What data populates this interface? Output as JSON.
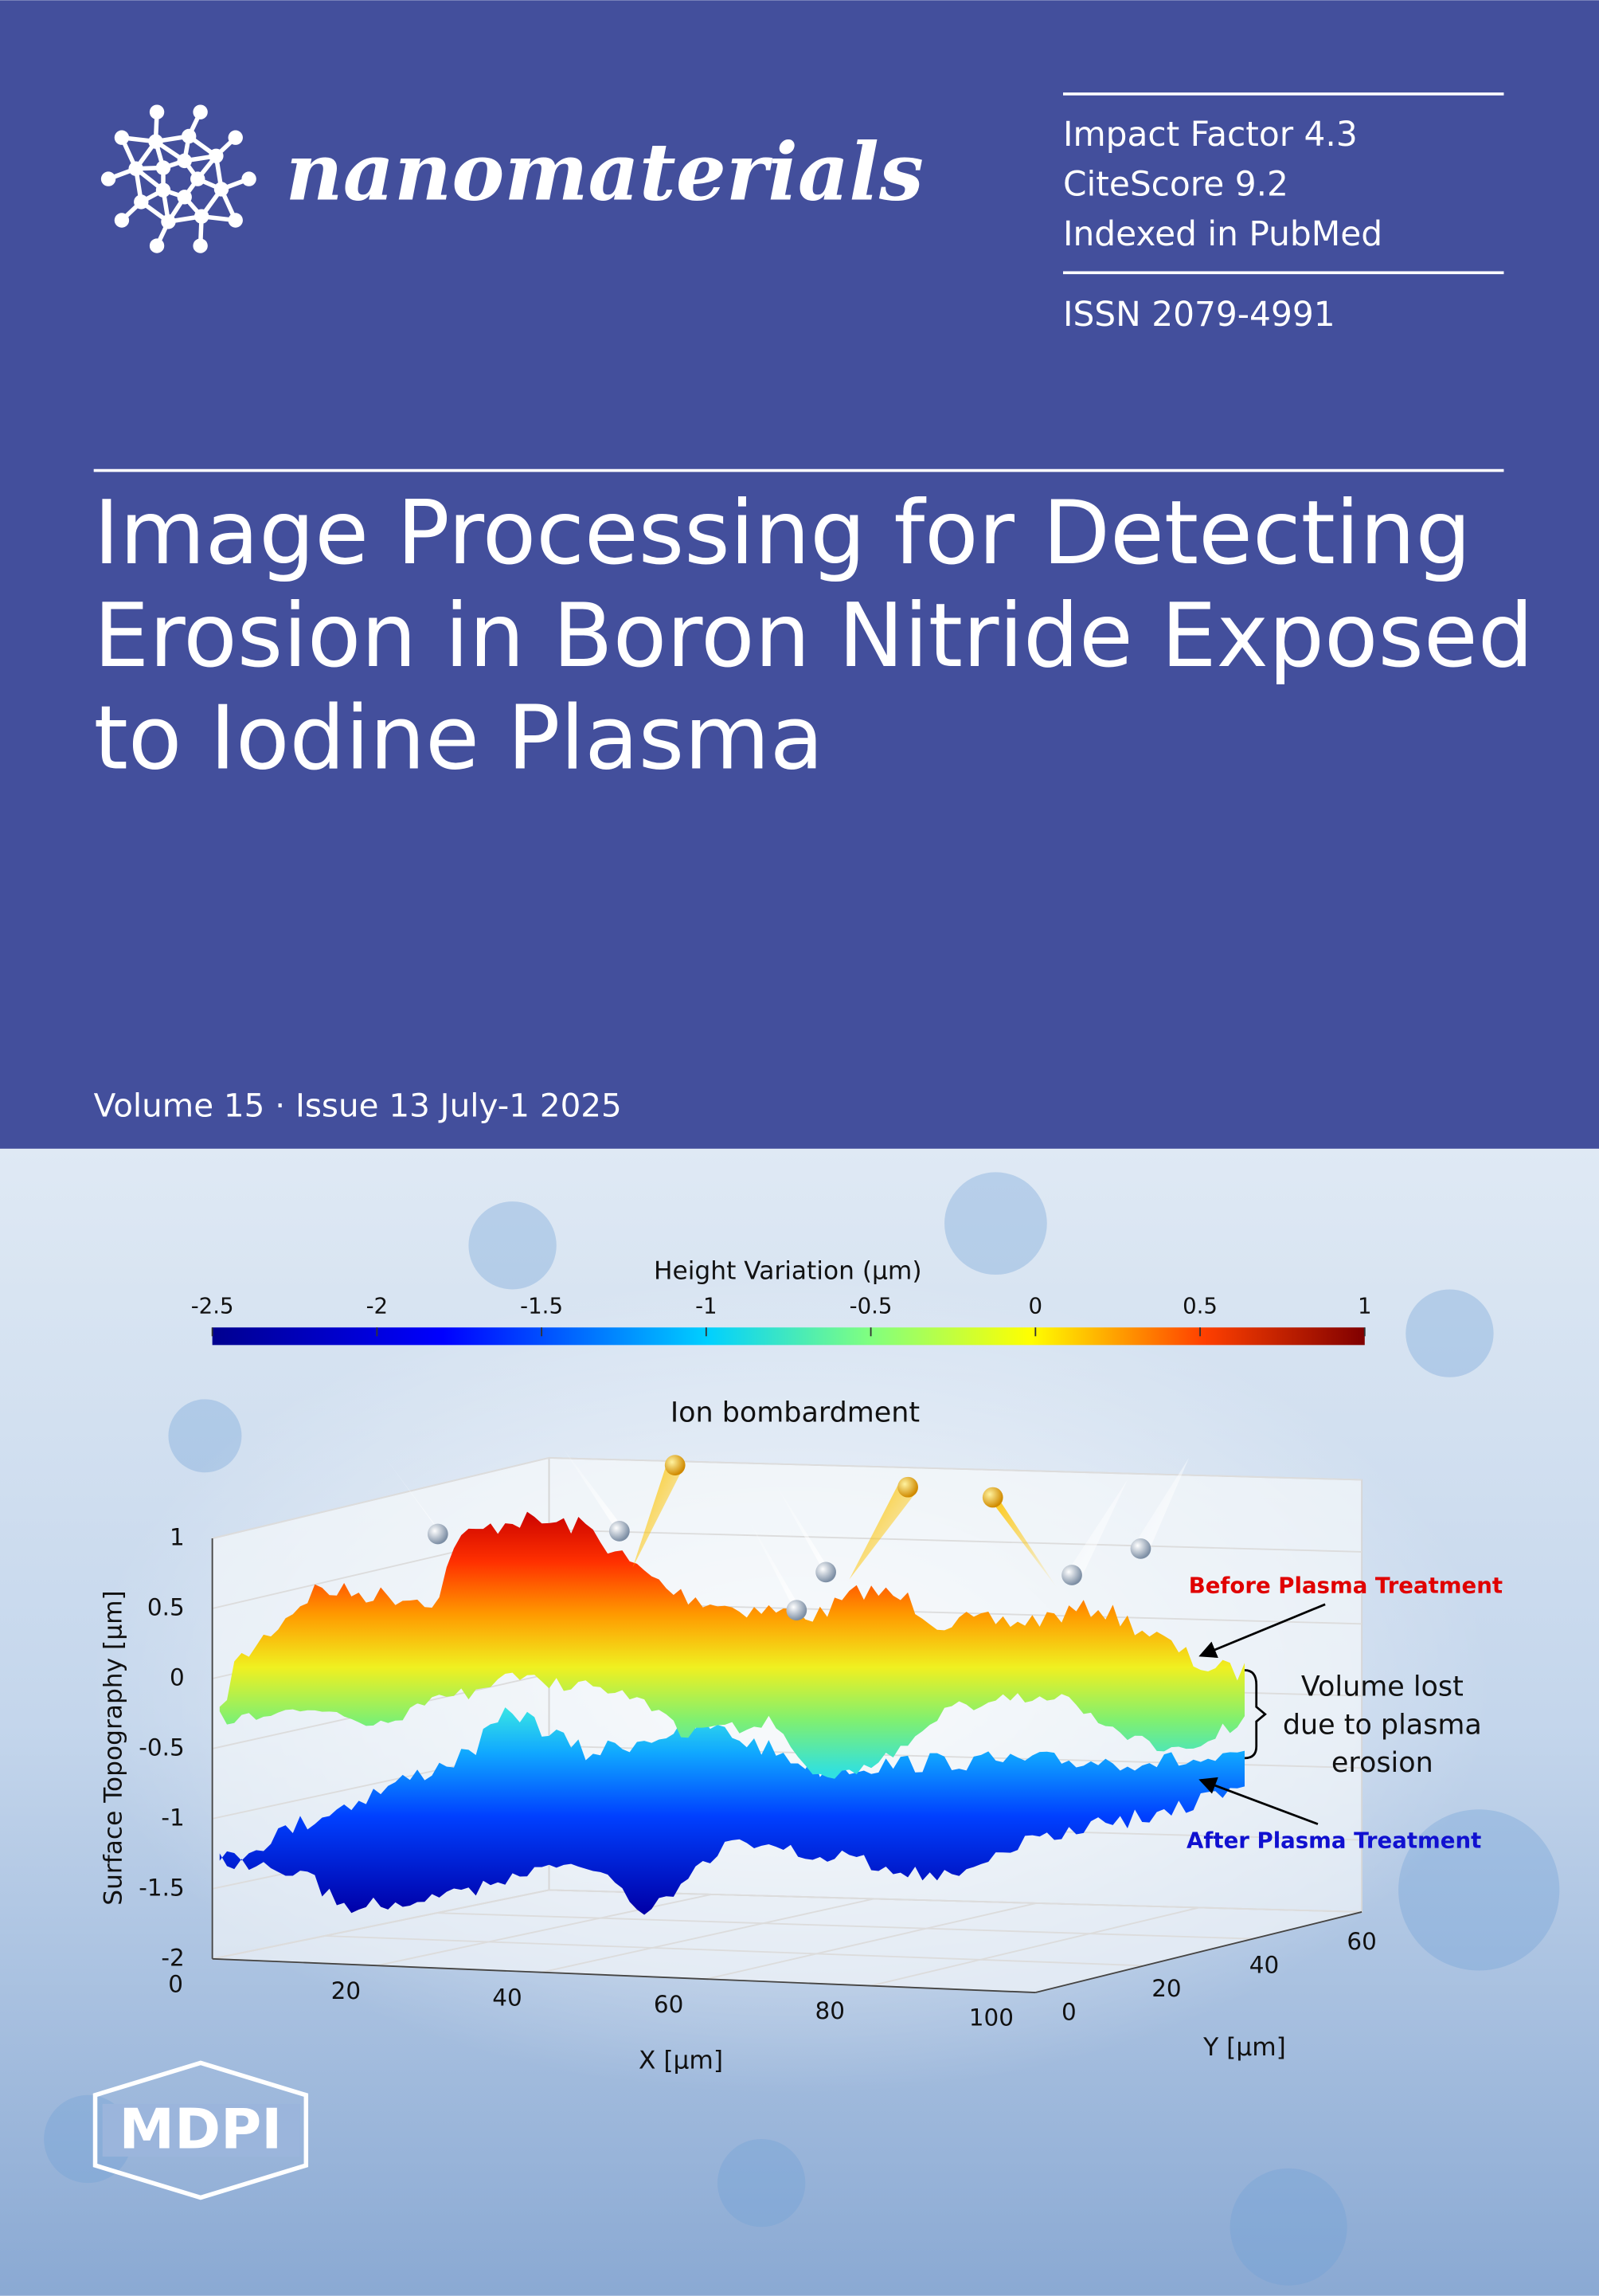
{
  "journal": {
    "name": "nanomaterials",
    "metrics": [
      "Impact Factor 4.3",
      "CiteScore 9.2",
      "Indexed in PubMed"
    ],
    "issn": "ISSN 2079-4991"
  },
  "article_title": [
    "Image Processing for Detecting",
    "Erosion in Boron Nitride Exposed",
    "to Iodine Plasma"
  ],
  "issue": "Volume 15 · Issue 13 July-1 2025",
  "figure": {
    "colorbar_title": "Height Variation (μm)",
    "colorbar_ticks": [
      -2.5,
      -2,
      -1.5,
      -1,
      -0.5,
      0,
      0.5,
      1
    ],
    "annotation": "Ion bombardment",
    "z_axis_label": "Surface Topography [μm]",
    "z_ticks": [
      1,
      0.5,
      0,
      -0.5,
      -1,
      -1.5,
      -2
    ],
    "x_axis_label": "X [μm]",
    "x_ticks": [
      0,
      20,
      40,
      60,
      80,
      100
    ],
    "y_axis_label": "Y [μm]",
    "y_ticks": [
      0,
      20,
      40,
      60
    ],
    "before_label": "Before Plasma Treatment",
    "after_label": "After Plasma Treatment",
    "volume_lost": [
      "Volume lost",
      "due to plasma",
      "erosion"
    ]
  },
  "publisher": "MDPI"
}
